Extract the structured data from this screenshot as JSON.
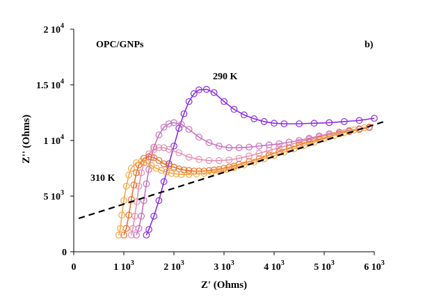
{
  "chart_data": {
    "type": "scatter",
    "title": "",
    "xlabel": "Z' (Ohms)",
    "ylabel": "Z'' (Ohms)",
    "xlim": [
      0,
      6000
    ],
    "ylim": [
      0,
      20000
    ],
    "grid": false,
    "x_ticks": [
      {
        "value": 0,
        "label": "0"
      },
      {
        "value": 1000,
        "label": "1 10",
        "exp": "3"
      },
      {
        "value": 2000,
        "label": "2 10",
        "exp": "3"
      },
      {
        "value": 3000,
        "label": "3 10",
        "exp": "3"
      },
      {
        "value": 4000,
        "label": "4 10",
        "exp": "3"
      },
      {
        "value": 5000,
        "label": "5 10",
        "exp": "3"
      },
      {
        "value": 6000,
        "label": "6 10",
        "exp": "3"
      }
    ],
    "y_ticks": [
      {
        "value": 0,
        "label": "0"
      },
      {
        "value": 5000,
        "label": "5 10",
        "exp": "3"
      },
      {
        "value": 10000,
        "label": "1 10",
        "exp": "4"
      },
      {
        "value": 15000,
        "label": "1.5 10",
        "exp": "4"
      },
      {
        "value": 20000,
        "label": "2 10",
        "exp": "4"
      }
    ],
    "annotations": {
      "sample": "OPC/GNPs",
      "panel": "b)",
      "temp_high": "290 K",
      "temp_low": "310 K"
    },
    "series": [
      {
        "color": "#8a2be2",
        "points": [
          [
            1450,
            1500
          ],
          [
            1500,
            2000
          ],
          [
            1600,
            3200
          ],
          [
            1700,
            4600
          ],
          [
            1800,
            6300
          ],
          [
            1900,
            7900
          ],
          [
            2000,
            9500
          ],
          [
            2100,
            11100
          ],
          [
            2200,
            12400
          ],
          [
            2300,
            13500
          ],
          [
            2400,
            14200
          ],
          [
            2500,
            14550
          ],
          [
            2650,
            14600
          ],
          [
            2800,
            14300
          ],
          [
            3000,
            13500
          ],
          [
            3200,
            12800
          ],
          [
            3400,
            12300
          ],
          [
            3600,
            11950
          ],
          [
            3800,
            11700
          ],
          [
            4000,
            11550
          ],
          [
            4200,
            11500
          ],
          [
            4500,
            11500
          ],
          [
            4800,
            11550
          ],
          [
            5100,
            11600
          ],
          [
            5400,
            11700
          ],
          [
            5700,
            11800
          ],
          [
            6000,
            12000
          ]
        ]
      },
      {
        "color": "#c76fbf",
        "points": [
          [
            1250,
            1500
          ],
          [
            1300,
            2100
          ],
          [
            1350,
            3200
          ],
          [
            1400,
            4600
          ],
          [
            1450,
            6100
          ],
          [
            1500,
            7400
          ],
          [
            1550,
            8500
          ],
          [
            1600,
            9400
          ],
          [
            1700,
            10500
          ],
          [
            1800,
            11200
          ],
          [
            1900,
            11500
          ],
          [
            2000,
            11600
          ],
          [
            2150,
            11450
          ],
          [
            2300,
            11000
          ],
          [
            2500,
            10300
          ],
          [
            2700,
            9800
          ],
          [
            2900,
            9500
          ],
          [
            3100,
            9350
          ],
          [
            3300,
            9350
          ],
          [
            3500,
            9400
          ],
          [
            3700,
            9500
          ],
          [
            3900,
            9600
          ],
          [
            4100,
            9700
          ],
          [
            4300,
            9850
          ],
          [
            4500,
            10000
          ],
          [
            4700,
            10200
          ],
          [
            4900,
            10400
          ],
          [
            5100,
            10600
          ],
          [
            5300,
            10750
          ],
          [
            5500,
            10900
          ],
          [
            5700,
            11050
          ],
          [
            5900,
            11200
          ]
        ]
      },
      {
        "color": "#e58fb0",
        "points": [
          [
            1150,
            1500
          ],
          [
            1180,
            2100
          ],
          [
            1220,
            3200
          ],
          [
            1260,
            4500
          ],
          [
            1300,
            5900
          ],
          [
            1350,
            7100
          ],
          [
            1400,
            8000
          ],
          [
            1500,
            8800
          ],
          [
            1600,
            9200
          ],
          [
            1700,
            9350
          ],
          [
            1800,
            9350
          ],
          [
            1900,
            9200
          ],
          [
            2100,
            8900
          ],
          [
            2300,
            8500
          ],
          [
            2500,
            8300
          ],
          [
            2700,
            8200
          ],
          [
            2900,
            8200
          ],
          [
            3100,
            8250
          ],
          [
            3300,
            8400
          ],
          [
            3500,
            8600
          ],
          [
            3700,
            8850
          ],
          [
            3900,
            9100
          ],
          [
            4100,
            9350
          ],
          [
            4300,
            9600
          ],
          [
            4500,
            9850
          ],
          [
            4700,
            10100
          ],
          [
            4900,
            10300
          ],
          [
            5100,
            10500
          ],
          [
            5300,
            10700
          ],
          [
            5500,
            10850
          ],
          [
            5700,
            11000
          ],
          [
            5900,
            11150
          ]
        ]
      },
      {
        "color": "#e8722a",
        "points": [
          [
            1000,
            1500
          ],
          [
            1050,
            2100
          ],
          [
            1100,
            3300
          ],
          [
            1150,
            4700
          ],
          [
            1200,
            6000
          ],
          [
            1250,
            7100
          ],
          [
            1300,
            7800
          ],
          [
            1400,
            8400
          ],
          [
            1500,
            8550
          ],
          [
            1600,
            8450
          ],
          [
            1700,
            8200
          ],
          [
            1800,
            7900
          ],
          [
            1900,
            7700
          ],
          [
            2000,
            7600
          ],
          [
            2100,
            7450
          ],
          [
            2200,
            7350
          ],
          [
            2300,
            7300
          ],
          [
            2400,
            7250
          ],
          [
            2500,
            7250
          ],
          [
            2600,
            7250
          ],
          [
            2700,
            7300
          ],
          [
            2800,
            7350
          ],
          [
            2900,
            7400
          ],
          [
            3000,
            7500
          ],
          [
            3100,
            7600
          ],
          [
            3200,
            7700
          ],
          [
            3300,
            7850
          ],
          [
            3500,
            8100
          ],
          [
            3700,
            8350
          ],
          [
            3900,
            8700
          ],
          [
            4100,
            9000
          ],
          [
            4300,
            9300
          ],
          [
            4500,
            9600
          ],
          [
            4700,
            9850
          ],
          [
            4900,
            10100
          ],
          [
            5100,
            10350
          ],
          [
            5300,
            10600
          ],
          [
            5500,
            10800
          ],
          [
            5700,
            11000
          ],
          [
            5900,
            11200
          ]
        ]
      },
      {
        "color": "#f6a644",
        "points": [
          [
            900,
            1500
          ],
          [
            930,
            2100
          ],
          [
            960,
            3300
          ],
          [
            1000,
            4600
          ],
          [
            1050,
            5900
          ],
          [
            1100,
            6900
          ],
          [
            1150,
            7500
          ],
          [
            1250,
            8000
          ],
          [
            1350,
            8100
          ],
          [
            1450,
            8000
          ],
          [
            1550,
            7750
          ],
          [
            1650,
            7500
          ],
          [
            1750,
            7300
          ],
          [
            1850,
            7150
          ],
          [
            1950,
            7050
          ],
          [
            2050,
            7000
          ],
          [
            2150,
            6950
          ],
          [
            2300,
            6950
          ],
          [
            2450,
            7000
          ],
          [
            2600,
            7050
          ],
          [
            2750,
            7150
          ],
          [
            2900,
            7250
          ],
          [
            3050,
            7400
          ],
          [
            3200,
            7550
          ],
          [
            3400,
            7800
          ],
          [
            3600,
            8050
          ],
          [
            3800,
            8350
          ],
          [
            4000,
            8650
          ],
          [
            4200,
            8950
          ],
          [
            4400,
            9250
          ],
          [
            4600,
            9550
          ],
          [
            4800,
            9850
          ],
          [
            5000,
            10150
          ],
          [
            5200,
            10450
          ],
          [
            5400,
            10700
          ],
          [
            5600,
            10950
          ],
          [
            5800,
            11150
          ]
        ]
      }
    ],
    "trend_line": {
      "style": "dashed",
      "color": "#000000",
      "points": [
        [
          100,
          3000
        ],
        [
          6200,
          11700
        ]
      ]
    }
  }
}
